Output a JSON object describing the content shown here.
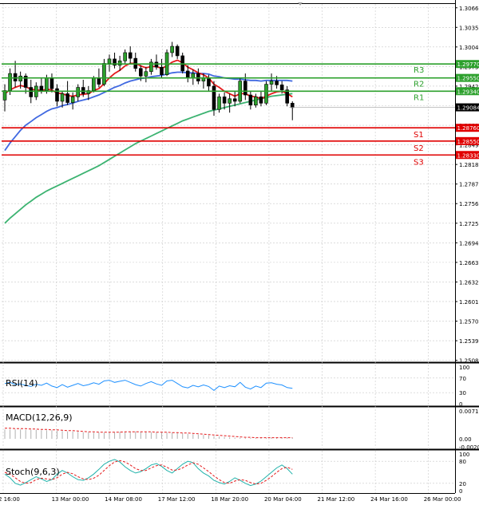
{
  "chart_data": {
    "type": "candlestick",
    "price_ticks": [
      "1.30660",
      "1.30350",
      "1.30040",
      "1.29730",
      "1.29420",
      "1.29110",
      "1.28800",
      "1.28490",
      "1.28180",
      "1.27870",
      "1.27560",
      "1.27250",
      "1.26940",
      "1.26630",
      "1.26320",
      "1.26010",
      "1.25700",
      "1.25390",
      "1.25080"
    ],
    "price_range": [
      1.2505,
      1.3072
    ],
    "time_labels": [
      "2 16:00",
      "13 Mar 00:00",
      "14 Mar 08:00",
      "17 Mar 12:00",
      "18 Mar 20:00",
      "20 Mar 04:00",
      "21 Mar 12:00",
      "24 Mar 16:00",
      "26 Mar 00:00"
    ],
    "current_price": "1.29084",
    "levels": [
      {
        "name": "R3",
        "value": 1.2977,
        "label": "1.29770",
        "color": "#2ca02c"
      },
      {
        "name": "R2",
        "value": 1.2955,
        "label": "1.29550",
        "color": "#2ca02c"
      },
      {
        "name": "R1",
        "value": 1.2934,
        "label": "1.29340",
        "color": "#2ca02c"
      },
      {
        "name": "S1",
        "value": 1.2876,
        "label": "1.28760",
        "color": "#e00000"
      },
      {
        "name": "S2",
        "value": 1.2855,
        "label": "1.28550",
        "color": "#e00000"
      },
      {
        "name": "S3",
        "value": 1.2833,
        "label": "1.28330",
        "color": "#e00000"
      }
    ],
    "candles": [
      [
        1.292,
        1.2945,
        1.2902,
        1.2935
      ],
      [
        1.2935,
        1.297,
        1.2928,
        1.2962
      ],
      [
        1.2962,
        1.2982,
        1.294,
        1.295
      ],
      [
        1.295,
        1.2965,
        1.2938,
        1.2958
      ],
      [
        1.2958,
        1.2962,
        1.293,
        1.294
      ],
      [
        1.294,
        1.2952,
        1.2915,
        1.2925
      ],
      [
        1.2925,
        1.2948,
        1.292,
        1.2942
      ],
      [
        1.2942,
        1.2955,
        1.293,
        1.2935
      ],
      [
        1.2935,
        1.296,
        1.293,
        1.2955
      ],
      [
        1.2955,
        1.2962,
        1.2932,
        1.2938
      ],
      [
        1.2938,
        1.2945,
        1.291,
        1.2918
      ],
      [
        1.2918,
        1.2935,
        1.2908,
        1.293
      ],
      [
        1.293,
        1.295,
        1.2912,
        1.2916
      ],
      [
        1.2916,
        1.2932,
        1.2905,
        1.2925
      ],
      [
        1.2925,
        1.2945,
        1.2918,
        1.294
      ],
      [
        1.294,
        1.2952,
        1.2925,
        1.293
      ],
      [
        1.293,
        1.2942,
        1.292,
        1.2935
      ],
      [
        1.2935,
        1.2958,
        1.2932,
        1.2955
      ],
      [
        1.2955,
        1.297,
        1.294,
        1.2945
      ],
      [
        1.2945,
        1.2985,
        1.2942,
        1.2978
      ],
      [
        1.2978,
        1.2992,
        1.2965,
        1.2985
      ],
      [
        1.2985,
        1.2995,
        1.297,
        1.2975
      ],
      [
        1.2975,
        1.299,
        1.2966,
        1.2982
      ],
      [
        1.2982,
        1.3,
        1.2978,
        1.2995
      ],
      [
        1.2995,
        1.3005,
        1.2978,
        1.2986
      ],
      [
        1.2986,
        1.2995,
        1.2965,
        1.297
      ],
      [
        1.297,
        1.2975,
        1.295,
        1.2958
      ],
      [
        1.2958,
        1.2972,
        1.2948,
        1.2965
      ],
      [
        1.2965,
        1.2985,
        1.296,
        1.298
      ],
      [
        1.298,
        1.2992,
        1.2968,
        1.2972
      ],
      [
        1.2972,
        1.2985,
        1.2955,
        1.296
      ],
      [
        1.296,
        1.3,
        1.2958,
        1.2995
      ],
      [
        1.2995,
        1.3012,
        1.2988,
        1.3005
      ],
      [
        1.3005,
        1.3008,
        1.2985,
        1.299
      ],
      [
        1.299,
        1.2995,
        1.2962,
        1.2966
      ],
      [
        1.2966,
        1.2975,
        1.2948,
        1.2955
      ],
      [
        1.2955,
        1.2968,
        1.2944,
        1.2962
      ],
      [
        1.2962,
        1.297,
        1.2945,
        1.295
      ],
      [
        1.295,
        1.2962,
        1.2938,
        1.2955
      ],
      [
        1.2955,
        1.296,
        1.2935,
        1.2942
      ],
      [
        1.2942,
        1.295,
        1.2895,
        1.2905
      ],
      [
        1.2905,
        1.293,
        1.29,
        1.2925
      ],
      [
        1.2925,
        1.2932,
        1.2905,
        1.2915
      ],
      [
        1.2915,
        1.293,
        1.29,
        1.2922
      ],
      [
        1.2922,
        1.2935,
        1.291,
        1.2918
      ],
      [
        1.2918,
        1.2955,
        1.2915,
        1.295
      ],
      [
        1.295,
        1.2962,
        1.292,
        1.2928
      ],
      [
        1.2928,
        1.2935,
        1.2905,
        1.2912
      ],
      [
        1.2912,
        1.293,
        1.2908,
        1.2925
      ],
      [
        1.2925,
        1.2935,
        1.291,
        1.2915
      ],
      [
        1.2915,
        1.295,
        1.2912,
        1.2945
      ],
      [
        1.2945,
        1.2962,
        1.2935,
        1.295
      ],
      [
        1.295,
        1.2958,
        1.2938,
        1.2944
      ],
      [
        1.2944,
        1.295,
        1.293,
        1.2936
      ],
      [
        1.2936,
        1.2942,
        1.291,
        1.2915
      ],
      [
        1.2915,
        1.2918,
        1.2888,
        1.2908
      ]
    ],
    "ma_fast_red": [
      1.293,
      1.2936,
      1.294,
      1.2943,
      1.2941,
      1.2937,
      1.2936,
      1.2935,
      1.2937,
      1.2936,
      1.2931,
      1.293,
      1.2927,
      1.2926,
      1.2928,
      1.2929,
      1.293,
      1.2935,
      1.2938,
      1.2946,
      1.2955,
      1.2962,
      1.2967,
      1.2974,
      1.2978,
      1.2978,
      1.2974,
      1.2971,
      1.2973,
      1.2973,
      1.297,
      1.2974,
      1.298,
      1.2983,
      1.2979,
      1.2972,
      1.2968,
      1.2963,
      1.296,
      1.2955,
      1.2945,
      1.294,
      1.2934,
      1.293,
      1.2926,
      1.293,
      1.293,
      1.2926,
      1.2925,
      1.2922,
      1.2926,
      1.293,
      1.2933,
      1.2934,
      1.293,
      1.2925
    ],
    "ma_mid_blue": [
      1.284,
      1.2852,
      1.2862,
      1.2872,
      1.288,
      1.2886,
      1.2892,
      1.2897,
      1.2902,
      1.2906,
      1.2908,
      1.2911,
      1.2913,
      1.2915,
      1.2918,
      1.292,
      1.2922,
      1.2925,
      1.2928,
      1.2932,
      1.2936,
      1.294,
      1.2943,
      1.2947,
      1.295,
      1.2952,
      1.2954,
      1.2955,
      1.2957,
      1.2958,
      1.2959,
      1.2961,
      1.2963,
      1.2964,
      1.2964,
      1.2963,
      1.2963,
      1.2962,
      1.2962,
      1.2961,
      1.2958,
      1.2957,
      1.2955,
      1.2954,
      1.2953,
      1.2953,
      1.2952,
      1.2951,
      1.2951,
      1.295,
      1.2951,
      1.2951,
      1.2951,
      1.2951,
      1.2951,
      1.295
    ],
    "ma_slow_green": [
      1.2725,
      1.2733,
      1.274,
      1.2747,
      1.2754,
      1.276,
      1.2766,
      1.2771,
      1.2776,
      1.278,
      1.2784,
      1.2788,
      1.2792,
      1.2796,
      1.28,
      1.2804,
      1.2808,
      1.2812,
      1.2816,
      1.2821,
      1.2826,
      1.2831,
      1.2836,
      1.2841,
      1.2846,
      1.2851,
      1.2855,
      1.2859,
      1.2863,
      1.2867,
      1.2871,
      1.2875,
      1.2879,
      1.2883,
      1.2887,
      1.289,
      1.2893,
      1.2896,
      1.2899,
      1.2902,
      1.2904,
      1.2906,
      1.2908,
      1.291,
      1.2912,
      1.2914,
      1.2916,
      1.2918,
      1.292,
      1.2922,
      1.2924,
      1.2926,
      1.2927,
      1.2928,
      1.2929,
      1.293
    ],
    "indicators": {
      "rsi": {
        "label": "RSI(14)",
        "ticks": [
          "100",
          "70",
          "30",
          "0"
        ],
        "range": [
          0,
          100
        ],
        "values": [
          55,
          58,
          52,
          54,
          50,
          47,
          53,
          50,
          56,
          48,
          44,
          52,
          45,
          50,
          55,
          49,
          52,
          57,
          53,
          62,
          64,
          58,
          61,
          64,
          58,
          52,
          48,
          55,
          60,
          54,
          50,
          62,
          64,
          55,
          46,
          43,
          50,
          46,
          51,
          47,
          36,
          48,
          44,
          49,
          46,
          58,
          45,
          40,
          48,
          44,
          56,
          57,
          53,
          51,
          44,
          42
        ]
      },
      "macd": {
        "label": "MACD(12,26,9)",
        "ticks": [
          "0.007164",
          "0.00",
          "-0.00203"
        ],
        "range": [
          -0.00203,
          0.007164
        ],
        "histogram": [
          0.0024,
          0.0024,
          0.0024,
          0.0024,
          0.0023,
          0.0023,
          0.0023,
          0.0022,
          0.0022,
          0.0022,
          0.0021,
          0.002,
          0.0019,
          0.0019,
          0.0018,
          0.0017,
          0.0017,
          0.0016,
          0.0016,
          0.0016,
          0.0017,
          0.0017,
          0.0018,
          0.0018,
          0.0019,
          0.0019,
          0.0018,
          0.0018,
          0.0017,
          0.0017,
          0.0016,
          0.0016,
          0.0016,
          0.0015,
          0.0014,
          0.0013,
          0.0012,
          0.0011,
          0.001,
          0.0009,
          0.0007,
          0.0006,
          0.0005,
          0.0004,
          0.0003,
          0.0003,
          0.0002,
          0.0002,
          0.0002,
          0.0002,
          0.0002,
          0.0003,
          0.0003,
          0.0003,
          0.0003,
          0.0003
        ],
        "signal": [
          0.0027,
          0.0027,
          0.0026,
          0.0026,
          0.0026,
          0.0025,
          0.0025,
          0.0024,
          0.0024,
          0.0023,
          0.0023,
          0.0022,
          0.0021,
          0.0021,
          0.002,
          0.0019,
          0.0018,
          0.0018,
          0.0017,
          0.0017,
          0.0017,
          0.0017,
          0.0017,
          0.0018,
          0.0018,
          0.0018,
          0.0018,
          0.0018,
          0.0018,
          0.0017,
          0.0017,
          0.0017,
          0.0016,
          0.0016,
          0.0015,
          0.0015,
          0.0014,
          0.0013,
          0.0012,
          0.0011,
          0.001,
          0.0009,
          0.0008,
          0.0007,
          0.0006,
          0.0005,
          0.0004,
          0.0004,
          0.0003,
          0.0003,
          0.0003,
          0.0003,
          0.0003,
          0.0003,
          0.0003,
          0.0003
        ]
      },
      "stoch": {
        "label": "Stoch(9,6,3)",
        "ticks": [
          "100",
          "80",
          "20",
          "0"
        ],
        "range": [
          0,
          100
        ],
        "main": [
          45,
          35,
          20,
          15,
          22,
          30,
          38,
          32,
          25,
          30,
          45,
          55,
          48,
          38,
          30,
          28,
          35,
          45,
          58,
          72,
          80,
          85,
          78,
          65,
          55,
          48,
          52,
          60,
          70,
          74,
          66,
          55,
          48,
          60,
          72,
          80,
          76,
          60,
          48,
          40,
          28,
          22,
          18,
          25,
          35,
          28,
          20,
          14,
          18,
          26,
          38,
          50,
          62,
          70,
          60,
          45
        ],
        "signal": [
          50,
          45,
          35,
          25,
          20,
          22,
          30,
          34,
          32,
          30,
          35,
          45,
          50,
          46,
          38,
          32,
          30,
          34,
          42,
          55,
          68,
          78,
          82,
          78,
          70,
          60,
          55,
          55,
          62,
          68,
          70,
          64,
          56,
          56,
          62,
          70,
          76,
          72,
          62,
          52,
          40,
          30,
          22,
          20,
          26,
          30,
          28,
          22,
          18,
          20,
          28,
          38,
          50,
          60,
          64,
          58
        ]
      }
    }
  }
}
